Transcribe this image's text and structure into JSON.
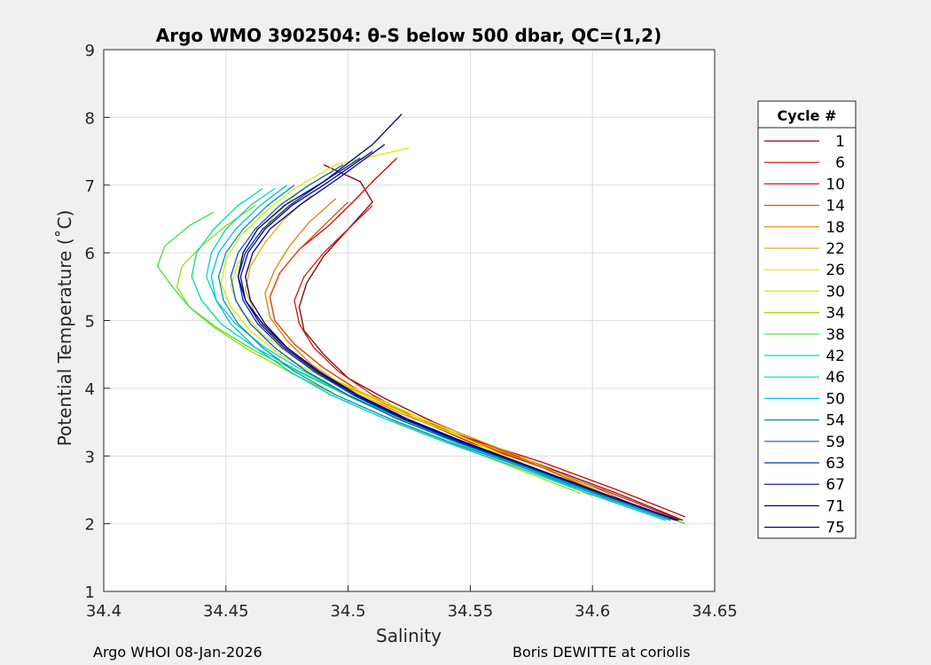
{
  "chart_data": {
    "type": "line",
    "title": "Argo WMO 3902504: θ-S below 500 dbar,  QC=(1,2)",
    "xlabel": "Salinity",
    "ylabel": "Potential Temperature (˚C)",
    "xlim": [
      34.4,
      34.65
    ],
    "ylim": [
      1,
      9
    ],
    "xticks": [
      "34.4",
      "34.45",
      "34.5",
      "34.55",
      "34.6",
      "34.65"
    ],
    "yticks": [
      "1",
      "2",
      "3",
      "4",
      "5",
      "6",
      "7",
      "8",
      "9"
    ],
    "grid": true,
    "legend": {
      "title": "Cycle #",
      "placement": "outside-right",
      "entries": [
        "1",
        "6",
        "10",
        "14",
        "18",
        "22",
        "26",
        "30",
        "34",
        "38",
        "42",
        "46",
        "50",
        "54",
        "59",
        "63",
        "67",
        "71",
        "75"
      ],
      "colors": [
        "#800000",
        "#d00000",
        "#e01010",
        "#e05000",
        "#e08000",
        "#e0b000",
        "#e8e000",
        "#d8e800",
        "#90e000",
        "#40e040",
        "#00e090",
        "#00d8c0",
        "#00c0e0",
        "#0090c0",
        "#0060c0",
        "#0030c0",
        "#000090",
        "#000080",
        "#000070"
      ]
    },
    "series": [
      {
        "name": "1",
        "x": [
          34.637,
          34.61,
          34.58,
          34.555,
          34.535,
          34.515,
          34.5,
          34.49,
          34.482,
          34.48,
          34.483,
          34.49,
          34.5,
          34.51,
          34.505,
          34.49
        ],
        "y": [
          2.05,
          2.45,
          2.85,
          3.2,
          3.5,
          3.85,
          4.15,
          4.5,
          4.85,
          5.2,
          5.55,
          5.95,
          6.35,
          6.75,
          7.05,
          7.3
        ]
      },
      {
        "name": "6",
        "x": [
          34.638,
          34.61,
          34.58,
          34.55,
          34.525,
          34.505,
          34.49,
          34.478,
          34.47,
          34.468,
          34.472,
          34.48,
          34.492,
          34.502,
          34.51,
          34.52
        ],
        "y": [
          2.1,
          2.5,
          2.9,
          3.25,
          3.6,
          3.95,
          4.3,
          4.65,
          5.0,
          5.35,
          5.7,
          6.05,
          6.4,
          6.75,
          7.05,
          7.4
        ]
      },
      {
        "name": "10",
        "x": [
          34.636,
          34.608,
          34.578,
          34.55,
          34.528,
          34.51,
          34.496,
          34.486,
          34.48,
          34.478,
          34.482,
          34.49,
          34.5,
          34.51
        ],
        "y": [
          2.05,
          2.45,
          2.85,
          3.2,
          3.55,
          3.9,
          4.25,
          4.6,
          4.95,
          5.3,
          5.65,
          6.0,
          6.35,
          6.7
        ]
      },
      {
        "name": "14",
        "x": [
          34.63,
          34.6,
          34.575,
          34.548,
          34.525,
          34.505,
          34.49,
          34.478,
          34.47,
          34.468,
          34.472,
          34.48,
          34.49,
          34.5
        ],
        "y": [
          2.1,
          2.5,
          2.9,
          3.25,
          3.6,
          3.95,
          4.3,
          4.65,
          5.0,
          5.35,
          5.7,
          6.05,
          6.4,
          6.75
        ]
      },
      {
        "name": "18",
        "x": [
          34.625,
          34.6,
          34.572,
          34.545,
          34.52,
          34.5,
          34.485,
          34.475,
          34.468,
          34.466,
          34.47,
          34.476,
          34.484,
          34.495
        ],
        "y": [
          2.15,
          2.55,
          2.95,
          3.3,
          3.65,
          4.0,
          4.35,
          4.7,
          5.05,
          5.4,
          5.75,
          6.1,
          6.45,
          6.8
        ]
      },
      {
        "name": "22",
        "x": [
          34.62,
          34.595,
          34.57,
          34.545,
          34.52,
          34.498,
          34.482,
          34.47,
          34.462,
          34.458,
          34.46,
          34.466,
          34.474,
          34.485
        ],
        "y": [
          2.2,
          2.6,
          3.0,
          3.35,
          3.7,
          4.05,
          4.4,
          4.75,
          5.1,
          5.45,
          5.8,
          6.15,
          6.5,
          6.85
        ]
      },
      {
        "name": "26",
        "x": [
          34.61,
          34.585,
          34.56,
          34.54,
          34.518,
          34.496,
          34.478,
          34.465,
          34.456,
          34.452,
          34.455,
          34.462,
          34.47,
          34.48
        ],
        "y": [
          2.3,
          2.7,
          3.05,
          3.4,
          3.75,
          4.1,
          4.45,
          4.8,
          5.15,
          5.5,
          5.85,
          6.2,
          6.55,
          6.9
        ]
      },
      {
        "name": "30",
        "x": [
          34.6,
          34.58,
          34.558,
          34.535,
          34.512,
          34.49,
          34.472,
          34.46,
          34.452,
          34.448,
          34.45,
          34.456,
          34.466,
          34.478,
          34.495,
          34.525
        ],
        "y": [
          2.4,
          2.75,
          3.1,
          3.45,
          3.8,
          4.15,
          4.5,
          4.85,
          5.2,
          5.55,
          5.9,
          6.25,
          6.6,
          6.95,
          7.3,
          7.55
        ]
      },
      {
        "name": "34",
        "x": [
          34.595,
          34.57,
          34.545,
          34.52,
          34.498,
          34.478,
          34.46,
          34.445,
          34.435,
          34.43,
          34.432,
          34.44,
          34.45,
          34.462
        ],
        "y": [
          2.45,
          2.8,
          3.15,
          3.5,
          3.85,
          4.2,
          4.55,
          4.9,
          5.2,
          5.5,
          5.8,
          6.1,
          6.4,
          6.7
        ]
      },
      {
        "name": "38",
        "x": [
          34.638,
          34.605,
          34.575,
          34.548,
          34.524,
          34.502,
          34.482,
          34.462,
          34.446,
          34.435,
          34.428,
          34.422,
          34.425,
          34.435,
          34.445
        ],
        "y": [
          2.0,
          2.4,
          2.8,
          3.15,
          3.5,
          3.85,
          4.2,
          4.55,
          4.9,
          5.2,
          5.5,
          5.8,
          6.1,
          6.4,
          6.6
        ]
      },
      {
        "name": "42",
        "x": [
          34.632,
          34.6,
          34.572,
          34.546,
          34.522,
          34.5,
          34.48,
          34.462,
          34.448,
          34.44,
          34.436,
          34.438,
          34.445,
          34.455,
          34.465
        ],
        "y": [
          2.05,
          2.45,
          2.85,
          3.2,
          3.55,
          3.9,
          4.25,
          4.6,
          4.95,
          5.3,
          5.65,
          6.0,
          6.35,
          6.7,
          6.95
        ]
      },
      {
        "name": "46",
        "x": [
          34.63,
          34.598,
          34.57,
          34.544,
          34.52,
          34.5,
          34.482,
          34.466,
          34.454,
          34.446,
          34.442,
          34.444,
          34.45,
          34.46,
          34.47
        ],
        "y": [
          2.05,
          2.45,
          2.85,
          3.2,
          3.55,
          3.9,
          4.25,
          4.6,
          4.95,
          5.3,
          5.65,
          6.0,
          6.35,
          6.7,
          6.95
        ]
      },
      {
        "name": "50",
        "x": [
          34.63,
          34.598,
          34.568,
          34.54,
          34.515,
          34.493,
          34.476,
          34.462,
          34.452,
          34.446,
          34.444,
          34.447,
          34.454,
          34.464,
          34.475
        ],
        "y": [
          2.05,
          2.45,
          2.85,
          3.2,
          3.55,
          3.9,
          4.25,
          4.6,
          4.95,
          5.3,
          5.65,
          6.0,
          6.35,
          6.7,
          7.0
        ]
      },
      {
        "name": "54",
        "x": [
          34.632,
          34.6,
          34.57,
          34.542,
          34.517,
          34.495,
          34.478,
          34.465,
          34.455,
          34.449,
          34.447,
          34.45,
          34.457,
          34.467,
          34.478
        ],
        "y": [
          2.05,
          2.45,
          2.85,
          3.2,
          3.55,
          3.9,
          4.25,
          4.6,
          4.95,
          5.3,
          5.65,
          6.0,
          6.35,
          6.7,
          7.0
        ]
      },
      {
        "name": "59",
        "x": [
          34.634,
          34.602,
          34.572,
          34.545,
          34.52,
          34.5,
          34.483,
          34.47,
          34.46,
          34.454,
          34.452,
          34.455,
          34.462,
          34.472,
          34.484,
          34.498
        ],
        "y": [
          2.05,
          2.45,
          2.85,
          3.2,
          3.55,
          3.9,
          4.25,
          4.6,
          4.95,
          5.3,
          5.65,
          6.0,
          6.35,
          6.7,
          7.0,
          7.3
        ]
      },
      {
        "name": "63",
        "x": [
          34.634,
          34.603,
          34.573,
          34.546,
          34.522,
          34.502,
          34.486,
          34.473,
          34.463,
          34.457,
          34.455,
          34.458,
          34.465,
          34.476,
          34.49,
          34.505
        ],
        "y": [
          2.05,
          2.45,
          2.85,
          3.2,
          3.55,
          3.9,
          4.25,
          4.6,
          4.95,
          5.3,
          5.65,
          6.0,
          6.35,
          6.7,
          7.05,
          7.4
        ]
      },
      {
        "name": "67",
        "x": [
          34.635,
          34.604,
          34.574,
          34.547,
          34.523,
          34.503,
          34.487,
          34.474,
          34.464,
          34.458,
          34.456,
          34.459,
          34.466,
          34.477,
          34.492,
          34.51
        ],
        "y": [
          2.05,
          2.45,
          2.85,
          3.2,
          3.55,
          3.9,
          4.25,
          4.6,
          4.95,
          5.3,
          5.65,
          6.0,
          6.35,
          6.7,
          7.05,
          7.5
        ]
      },
      {
        "name": "71",
        "x": [
          34.635,
          34.604,
          34.574,
          34.548,
          34.524,
          34.504,
          34.488,
          34.475,
          34.466,
          34.46,
          34.458,
          34.461,
          34.468,
          34.48,
          34.496,
          34.515
        ],
        "y": [
          2.05,
          2.45,
          2.85,
          3.2,
          3.55,
          3.9,
          4.25,
          4.6,
          4.95,
          5.3,
          5.65,
          6.0,
          6.35,
          6.7,
          7.1,
          7.6
        ]
      },
      {
        "name": "75",
        "x": [
          34.635,
          34.604,
          34.574,
          34.548,
          34.524,
          34.504,
          34.488,
          34.475,
          34.465,
          34.458,
          34.455,
          34.457,
          34.463,
          34.474,
          34.49,
          34.51,
          34.522
        ],
        "y": [
          2.05,
          2.45,
          2.85,
          3.2,
          3.55,
          3.9,
          4.25,
          4.6,
          4.95,
          5.3,
          5.65,
          6.0,
          6.35,
          6.7,
          7.05,
          7.6,
          8.05
        ]
      }
    ]
  },
  "footer": {
    "left": "Argo WHOI 08-Jan-2026",
    "right": "Boris DEWITTE at coriolis"
  }
}
